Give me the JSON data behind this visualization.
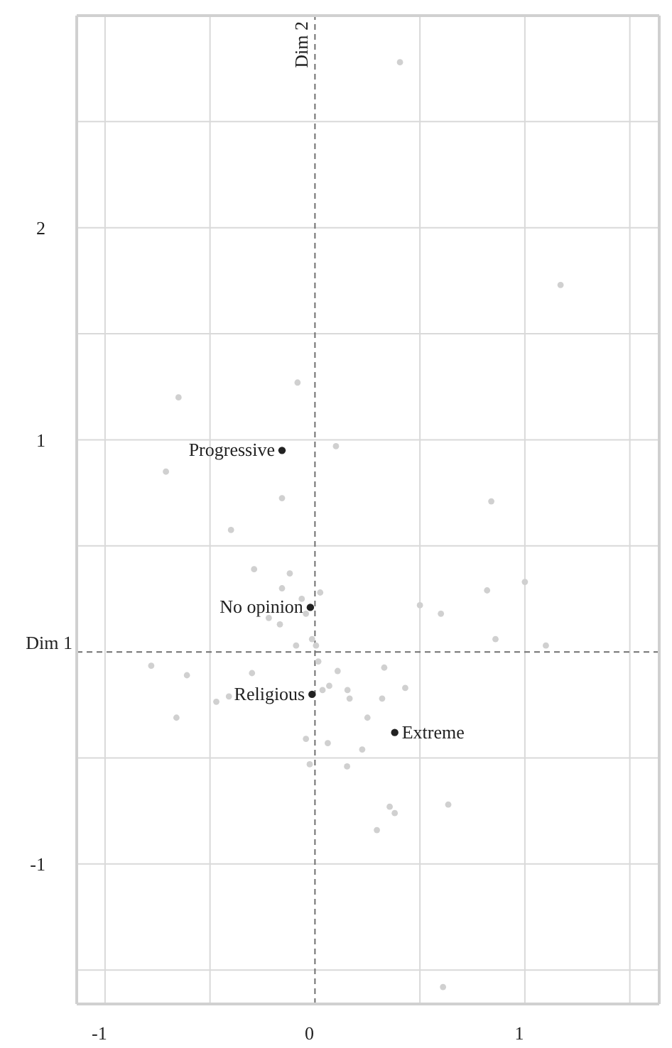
{
  "chart_data": {
    "type": "scatter",
    "xlim": [
      -1.135,
      1.64
    ],
    "ylim": [
      -1.66,
      3.0
    ],
    "xticks": [
      -1,
      {
        "value": -0.5,
        "label": null
      },
      0,
      {
        "value": 0.5,
        "label": null
      },
      1,
      {
        "value": 1.5,
        "label": null
      }
    ],
    "yticks": [
      {
        "value": -1.5,
        "label": null
      },
      -1,
      {
        "value": -0.5,
        "label": null
      },
      {
        "value": 0.5,
        "label": null
      },
      1,
      {
        "value": 1.5,
        "label": null
      },
      2,
      {
        "value": 2.5,
        "label": null
      }
    ],
    "grid": true,
    "marker": "circle",
    "ref_lines": [
      {
        "axis": "y",
        "value": 0,
        "label": "Dim 1",
        "color": "#707070",
        "line_style": "dashed"
      },
      {
        "axis": "x",
        "value": 0,
        "label": "Dim 2",
        "color": "#707070",
        "line_style": "dashed"
      }
    ],
    "series": [
      {
        "color": "#d0d0d0",
        "x": [
          0.405,
          1.17,
          -0.083,
          -0.65,
          0.1,
          -0.71,
          -0.157,
          0.84,
          -0.4,
          -0.29,
          -0.12,
          -0.157,
          0.025,
          -0.063,
          -0.043,
          -0.22,
          -0.167,
          0.5,
          0.6,
          0.82,
          1.0,
          0.86,
          1.1,
          -0.014,
          -0.09,
          0.005,
          0.016,
          -0.78,
          -0.61,
          -0.3,
          0.108,
          0.33,
          -0.47,
          -0.41,
          0.036,
          0.068,
          0.155,
          0.165,
          0.32,
          0.43,
          -0.66,
          0.25,
          -0.043,
          0.061,
          0.225,
          -0.025,
          0.153,
          0.356,
          0.38,
          0.635,
          0.295,
          0.61
        ],
        "values": [
          2.78,
          1.73,
          1.27,
          1.2,
          0.97,
          0.85,
          0.725,
          0.71,
          0.575,
          0.39,
          0.37,
          0.3,
          0.28,
          0.25,
          0.18,
          0.16,
          0.13,
          0.22,
          0.18,
          0.29,
          0.33,
          0.06,
          0.03,
          0.06,
          0.03,
          0.03,
          -0.045,
          -0.065,
          -0.11,
          -0.1,
          -0.09,
          -0.074,
          -0.235,
          -0.21,
          -0.18,
          -0.16,
          -0.18,
          -0.22,
          -0.22,
          -0.17,
          -0.31,
          -0.31,
          -0.41,
          -0.43,
          -0.46,
          -0.53,
          -0.54,
          -0.73,
          -0.76,
          -0.72,
          -0.84,
          -1.58
        ]
      },
      {
        "color": "#222222",
        "x": [
          -0.157,
          -0.022,
          -0.014,
          0.38
        ],
        "values": [
          0.95,
          0.21,
          -0.2,
          -0.38
        ]
      }
    ],
    "annotations": [
      {
        "text": "Progressive",
        "x": -0.157,
        "y": 0.95
      },
      {
        "text": "No opinion",
        "x": -0.022,
        "y": 0.21
      },
      {
        "text": "Religious",
        "x": -0.014,
        "y": -0.2
      },
      {
        "text": "Extreme",
        "x": 0.38,
        "y": -0.38
      }
    ]
  }
}
